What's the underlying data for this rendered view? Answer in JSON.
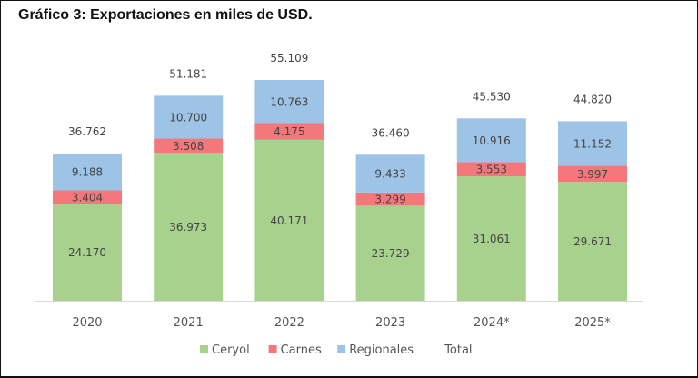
{
  "chart_data": {
    "type": "bar",
    "stacked": true,
    "title": "Gráfico 3: Exportaciones en miles de USD.",
    "categories": [
      "2020",
      "2021",
      "2022",
      "2023",
      "2024*",
      "2025*"
    ],
    "series": [
      {
        "name": "Ceryol",
        "color": "#a9d18e",
        "values": [
          24170,
          36973,
          40171,
          23729,
          31061,
          29671
        ],
        "labels": [
          "24.170",
          "36.973",
          "40.171",
          "23.729",
          "31.061",
          "29.671"
        ]
      },
      {
        "name": "Carnes",
        "color": "#f4777b",
        "values": [
          3404,
          3508,
          4175,
          3299,
          3553,
          3997
        ],
        "labels": [
          "3.404",
          "3.508",
          "4.175",
          "3.299",
          "3.553",
          "3.997"
        ]
      },
      {
        "name": "Regionales",
        "color": "#9dc3e6",
        "values": [
          9188,
          10700,
          10763,
          9433,
          10916,
          11152
        ],
        "labels": [
          "9.188",
          "10.700",
          "10.763",
          "9.433",
          "10.916",
          "11.152"
        ]
      }
    ],
    "totals": {
      "name": "Total",
      "values": [
        36762,
        51181,
        55109,
        36460,
        45530,
        44820
      ],
      "labels": [
        "36.762",
        "51.181",
        "55.109",
        "36.460",
        "45.530",
        "44.820"
      ]
    },
    "ylim": [
      0,
      60000
    ],
    "grid": false,
    "legend_position": "bottom"
  }
}
